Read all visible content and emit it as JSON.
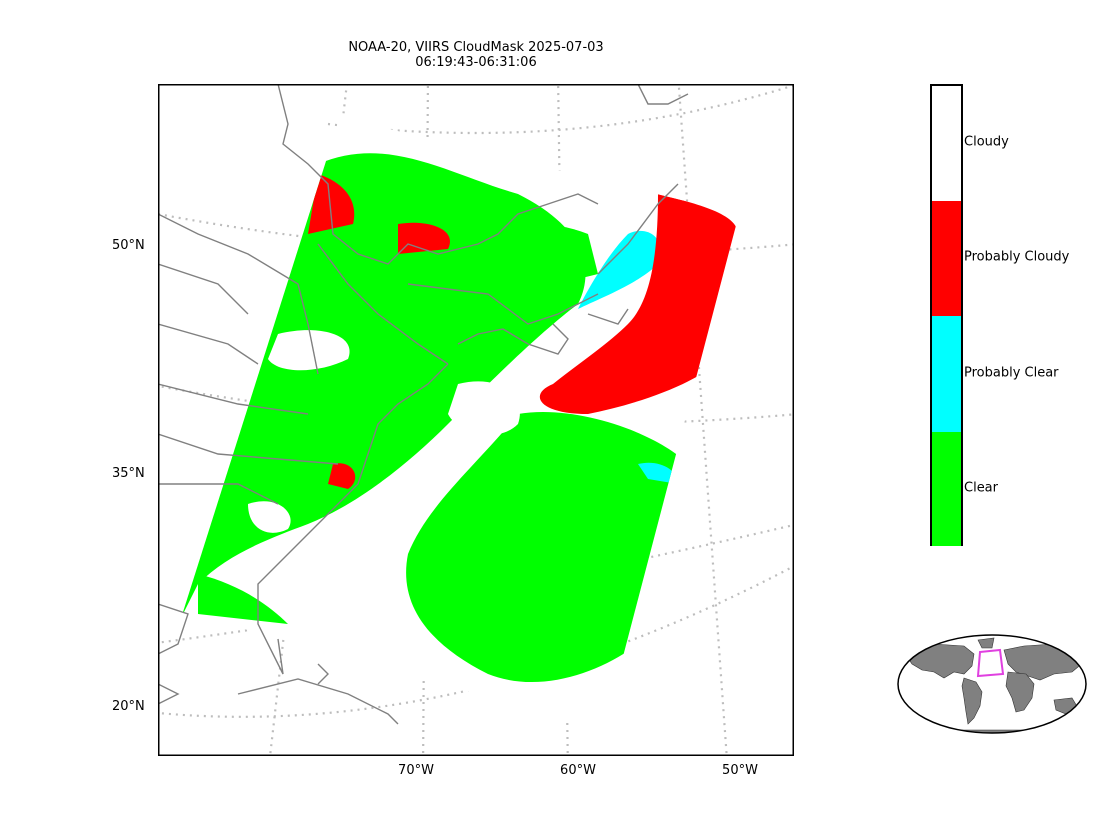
{
  "title": {
    "line1": "NOAA-20, VIIRS CloudMask 2025-07-03",
    "line2": "06:19:43-06:31:06"
  },
  "axes": {
    "lat_labels": [
      "50°N",
      "35°N",
      "20°N"
    ],
    "lon_labels": [
      "70°W",
      "60°W",
      "50°W"
    ]
  },
  "legend": {
    "categories": [
      {
        "label": "Cloudy",
        "color": "#ffffff"
      },
      {
        "label": "Probably Cloudy",
        "color": "#ff0000"
      },
      {
        "label": "Probably Clear",
        "color": "#00ffff"
      },
      {
        "label": "Clear",
        "color": "#00ff00"
      }
    ]
  },
  "colors": {
    "coastline": "#808080",
    "graticule": "#bdbdbd",
    "inset_land": "#808080",
    "inset_box": "#e040e0"
  }
}
